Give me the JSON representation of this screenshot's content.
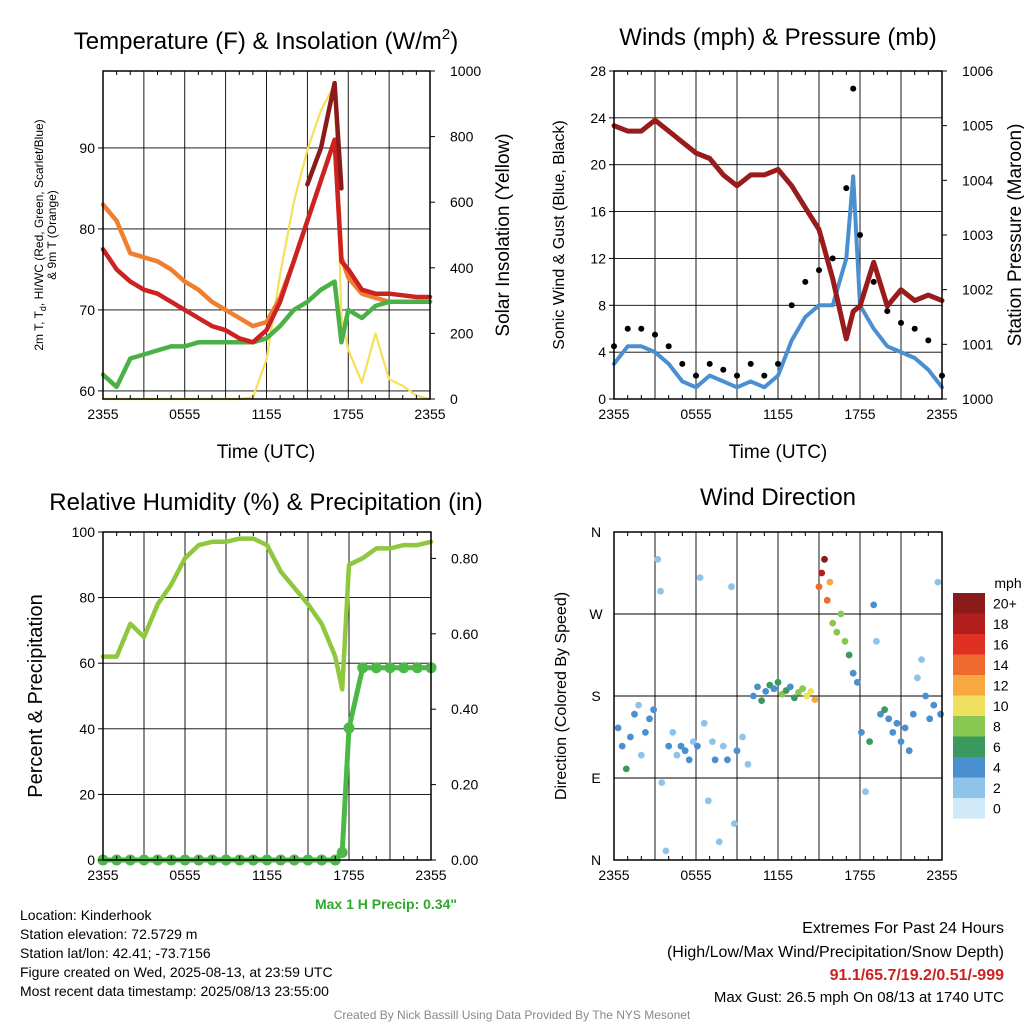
{
  "panels": {
    "temperature": {
      "title": "Temperature (F) & Insolation (W/m",
      "title_sup": "2",
      "title_close": ")",
      "ylabel_line1": "2m T, T",
      "ylabel_sub": "d",
      "ylabel_line1_rest": ", HI/WC (Red, Green, Scarlet/Blue)",
      "ylabel_line2": "& 9m T (Orange)",
      "y2label": "Solar Insolation (Yellow)",
      "xlabel": "Time (UTC)"
    },
    "winds": {
      "title": "Winds (mph) & Pressure (mb)",
      "ylabel": "Sonic Wind & Gust (Blue, Black)",
      "y2label": "Station Pressure (Maroon)",
      "xlabel": "Time (UTC)"
    },
    "humidity": {
      "title": "Relative Humidity (%) & Precipitation (in)",
      "ylabel": "Percent & Precipitation",
      "annotation": "Max 1 H Precip: 0.34\""
    },
    "direction": {
      "title": "Wind Direction",
      "ylabel": "Direction (Colored By Speed)",
      "legend_title": "mph"
    }
  },
  "station": {
    "location": "Location: Kinderhook",
    "elevation": "Station elevation: 72.5729 m",
    "latlon": "Station lat/lon: 42.41; -73.7156",
    "created": "Figure created on Wed, 2025-08-13, at 23:59 UTC",
    "recent": "Most recent data timestamp: 2025/08/13 23:55:00"
  },
  "extremes": {
    "title": "Extremes For Past 24 Hours",
    "subtitle": "(High/Low/Max Wind/Precipitation/Snow Depth)",
    "values": "91.1/65.7/19.2/0.51/-999",
    "gust": "Max Gust: 26.5 mph On 08/13 at 1740 UTC"
  },
  "credit": "Created By Nick Bassill Using Data Provided By The NYS Mesonet",
  "colors": {
    "temp_2m": "#cc2222",
    "temp_9m": "#ef7f2f",
    "heat_index": "#8b1a1a",
    "dewpoint": "#4cb048",
    "insolation": "#f5e05a",
    "wind": "#4a90d0",
    "gust": "#000000",
    "pressure": "#991b1b",
    "rh": "#8fc73e",
    "precip": "#4cb848",
    "extremes_values": "#cc2222",
    "annotation": "#2ea82e",
    "credit": "#888888"
  },
  "chart_data": [
    {
      "type": "line",
      "title": "Temperature (F) & Insolation (W/m2)",
      "xlabel": "Time (UTC)",
      "ylabel": "2m T, Td, HI/WC (Red, Green, Scarlet/Blue) & 9m T (Orange)",
      "y2label": "Solar Insolation (Yellow)",
      "x_ticks": [
        "2355",
        "0555",
        "1155",
        "1755",
        "2355"
      ],
      "ylim": [
        59,
        99.5
      ],
      "y_ticks": [
        60,
        70,
        80,
        90
      ],
      "y2lim": [
        0,
        1000
      ],
      "y2_ticks": [
        0,
        200,
        400,
        600,
        800,
        1000
      ],
      "x_hours": [
        0,
        1,
        2,
        3,
        4,
        5,
        6,
        7,
        8,
        9,
        10,
        11,
        12,
        13,
        14,
        15,
        16,
        17,
        17.5,
        18,
        19,
        20,
        21,
        22,
        23,
        24
      ],
      "series": [
        {
          "name": "2m T",
          "axis": "left",
          "values": [
            77.5,
            75,
            73.5,
            72.5,
            72,
            71,
            70,
            69,
            68,
            67.5,
            66.5,
            66,
            67.5,
            71,
            76,
            81,
            86,
            91,
            76,
            75,
            72.5,
            72,
            72,
            71.8,
            71.6,
            71.6
          ]
        },
        {
          "name": "9m T",
          "axis": "left",
          "values": [
            83,
            81,
            77,
            76.5,
            76,
            75,
            73.5,
            72.5,
            71,
            70,
            69,
            68,
            68.5,
            71.5,
            76,
            81,
            86,
            91,
            76.5,
            74,
            72,
            71.5,
            71,
            71,
            71,
            71
          ]
        },
        {
          "name": "HI",
          "axis": "left",
          "values": [
            null,
            null,
            null,
            null,
            null,
            null,
            null,
            null,
            null,
            null,
            null,
            null,
            null,
            null,
            null,
            85.5,
            90,
            98,
            85,
            null,
            null,
            null,
            null,
            null,
            null,
            null
          ]
        },
        {
          "name": "Td",
          "axis": "left",
          "values": [
            62,
            60.5,
            64,
            64.5,
            65,
            65.5,
            65.5,
            66,
            66,
            66,
            66,
            66,
            66.5,
            68,
            70,
            71,
            72.5,
            73.5,
            66,
            70,
            69,
            70.5,
            71,
            71,
            71,
            71
          ]
        },
        {
          "name": "Insolation",
          "axis": "right",
          "values": [
            0,
            0,
            0,
            0,
            0,
            0,
            0,
            0,
            0,
            0,
            0,
            5,
            120,
            380,
            600,
            760,
            880,
            960,
            250,
            150,
            50,
            200,
            60,
            40,
            10,
            0
          ]
        }
      ]
    },
    {
      "type": "line",
      "title": "Winds (mph) & Pressure (mb)",
      "xlabel": "Time (UTC)",
      "ylabel": "Sonic Wind & Gust (Blue, Black)",
      "y2label": "Station Pressure (Maroon)",
      "x_ticks": [
        "2355",
        "0555",
        "1155",
        "1755",
        "2355"
      ],
      "ylim": [
        0,
        28
      ],
      "y_ticks": [
        0,
        4,
        8,
        12,
        16,
        20,
        24,
        28
      ],
      "y2lim": [
        1000,
        1006
      ],
      "y2_ticks": [
        1000,
        1001,
        1002,
        1003,
        1004,
        1005,
        1006
      ],
      "x_hours": [
        0,
        1,
        2,
        3,
        4,
        5,
        6,
        7,
        8,
        9,
        10,
        11,
        12,
        13,
        14,
        15,
        16,
        17,
        17.5,
        18,
        19,
        20,
        21,
        22,
        23,
        24
      ],
      "series": [
        {
          "name": "Sonic Wind",
          "axis": "left",
          "values": [
            3,
            4.5,
            4.5,
            4,
            3,
            1.5,
            1,
            2,
            1.5,
            1,
            1.5,
            1,
            2,
            5,
            7,
            8,
            8,
            12,
            19,
            8,
            6,
            4.5,
            4,
            3.5,
            2.5,
            1
          ]
        },
        {
          "name": "Gust",
          "axis": "left",
          "values": [
            4.5,
            6,
            6,
            5.5,
            4.5,
            3,
            2,
            3,
            2.5,
            2,
            3,
            2,
            3,
            8,
            10,
            11,
            12,
            18,
            26.5,
            14,
            10,
            7.5,
            6.5,
            6,
            5,
            2
          ]
        },
        {
          "name": "Station Pressure",
          "axis": "right",
          "values": [
            1005.0,
            1004.9,
            1004.9,
            1005.1,
            1004.9,
            1004.7,
            1004.5,
            1004.4,
            1004.1,
            1003.9,
            1004.1,
            1004.1,
            1004.2,
            1003.9,
            1003.5,
            1003.1,
            1002.2,
            1001.1,
            1001.6,
            1001.7,
            1002.5,
            1001.7,
            1002.0,
            1001.8,
            1001.9,
            1001.8
          ]
        }
      ]
    },
    {
      "type": "line",
      "title": "Relative Humidity (%) & Precipitation (in)",
      "ylabel": "Percent & Precipitation",
      "x_ticks": [
        "2355",
        "0555",
        "1155",
        "1755",
        "2355"
      ],
      "ylim": [
        0,
        100
      ],
      "y_ticks": [
        0,
        20,
        40,
        60,
        80,
        100
      ],
      "y2lim": [
        0,
        0.87
      ],
      "y2_ticks": [
        0.0,
        0.2,
        0.4,
        0.6,
        0.8
      ],
      "annotation": "Max 1 H Precip: 0.34\"",
      "x_hours": [
        0,
        1,
        2,
        3,
        4,
        5,
        6,
        7,
        8,
        9,
        10,
        11,
        12,
        13,
        14,
        15,
        16,
        17,
        17.5,
        18,
        19,
        20,
        21,
        22,
        23,
        24
      ],
      "series": [
        {
          "name": "RH",
          "axis": "left",
          "values": [
            62,
            62,
            72,
            68,
            78,
            84,
            92,
            96,
            97,
            97,
            98,
            98,
            96,
            88,
            83,
            78,
            72,
            62,
            52,
            90,
            92,
            95,
            95,
            96,
            96,
            97
          ]
        },
        {
          "name": "Precipitation",
          "axis": "right",
          "values": [
            0,
            0,
            0,
            0,
            0,
            0,
            0,
            0,
            0,
            0,
            0,
            0,
            0,
            0,
            0,
            0,
            0,
            0,
            0.02,
            0.35,
            0.51,
            0.51,
            0.51,
            0.51,
            0.51,
            0.51
          ]
        }
      ]
    },
    {
      "type": "scatter",
      "title": "Wind Direction",
      "ylabel": "Direction (Colored By Speed)",
      "x_ticks": [
        "2355",
        "0555",
        "1155",
        "1755",
        "2355"
      ],
      "y_ticks": [
        "N",
        "E",
        "S",
        "W",
        "N"
      ],
      "ylim": [
        0,
        360
      ],
      "legend_title": "mph",
      "legend_labels": [
        "0",
        "2",
        "4",
        "6",
        "8",
        "10",
        "12",
        "14",
        "16",
        "18",
        "20+"
      ],
      "legend_colors": [
        "#cfe9f9",
        "#8fc4ea",
        "#4a90d0",
        "#3a9a5e",
        "#88c850",
        "#f0e060",
        "#f7a841",
        "#ef6a2e",
        "#e02f23",
        "#b21e1e",
        "#8b1a1a"
      ],
      "points": [
        {
          "x": 0.3,
          "dir": 145,
          "speed": 4
        },
        {
          "x": 0.6,
          "dir": 125,
          "speed": 4
        },
        {
          "x": 0.9,
          "dir": 100,
          "speed": 6
        },
        {
          "x": 1.2,
          "dir": 135,
          "speed": 4
        },
        {
          "x": 1.5,
          "dir": 160,
          "speed": 4
        },
        {
          "x": 1.8,
          "dir": 170,
          "speed": 2
        },
        {
          "x": 2.0,
          "dir": 115,
          "speed": 2
        },
        {
          "x": 2.3,
          "dir": 140,
          "speed": 4
        },
        {
          "x": 2.6,
          "dir": 155,
          "speed": 4
        },
        {
          "x": 2.9,
          "dir": 165,
          "speed": 4
        },
        {
          "x": 3.2,
          "dir": 330,
          "speed": 2
        },
        {
          "x": 3.4,
          "dir": 295,
          "speed": 2
        },
        {
          "x": 3.5,
          "dir": 85,
          "speed": 2
        },
        {
          "x": 3.8,
          "dir": 10,
          "speed": 2
        },
        {
          "x": 4.0,
          "dir": 125,
          "speed": 4
        },
        {
          "x": 4.3,
          "dir": 140,
          "speed": 2
        },
        {
          "x": 4.6,
          "dir": 115,
          "speed": 2
        },
        {
          "x": 4.9,
          "dir": 125,
          "speed": 4
        },
        {
          "x": 5.2,
          "dir": 120,
          "speed": 4
        },
        {
          "x": 5.5,
          "dir": 110,
          "speed": 4
        },
        {
          "x": 5.8,
          "dir": 130,
          "speed": 2
        },
        {
          "x": 6.1,
          "dir": 125,
          "speed": 4
        },
        {
          "x": 6.3,
          "dir": 310,
          "speed": 2
        },
        {
          "x": 6.6,
          "dir": 150,
          "speed": 2
        },
        {
          "x": 6.9,
          "dir": 65,
          "speed": 2
        },
        {
          "x": 7.2,
          "dir": 130,
          "speed": 2
        },
        {
          "x": 7.4,
          "dir": 110,
          "speed": 4
        },
        {
          "x": 7.7,
          "dir": 20,
          "speed": 2
        },
        {
          "x": 8.0,
          "dir": 125,
          "speed": 2
        },
        {
          "x": 8.3,
          "dir": 110,
          "speed": 4
        },
        {
          "x": 8.6,
          "dir": 300,
          "speed": 2
        },
        {
          "x": 8.8,
          "dir": 40,
          "speed": 2
        },
        {
          "x": 9.0,
          "dir": 120,
          "speed": 4
        },
        {
          "x": 9.4,
          "dir": 135,
          "speed": 2
        },
        {
          "x": 9.8,
          "dir": 105,
          "speed": 2
        },
        {
          "x": 10.2,
          "dir": 180,
          "speed": 4
        },
        {
          "x": 10.5,
          "dir": 190,
          "speed": 4
        },
        {
          "x": 10.8,
          "dir": 175,
          "speed": 6
        },
        {
          "x": 11.1,
          "dir": 185,
          "speed": 4
        },
        {
          "x": 11.4,
          "dir": 192,
          "speed": 6
        },
        {
          "x": 11.7,
          "dir": 188,
          "speed": 4
        },
        {
          "x": 12.0,
          "dir": 195,
          "speed": 6
        },
        {
          "x": 12.3,
          "dir": 182,
          "speed": 8
        },
        {
          "x": 12.6,
          "dir": 186,
          "speed": 6
        },
        {
          "x": 12.9,
          "dir": 190,
          "speed": 4
        },
        {
          "x": 13.2,
          "dir": 178,
          "speed": 6
        },
        {
          "x": 13.5,
          "dir": 184,
          "speed": 8
        },
        {
          "x": 13.8,
          "dir": 188,
          "speed": 8
        },
        {
          "x": 14.1,
          "dir": 180,
          "speed": 10
        },
        {
          "x": 14.4,
          "dir": 185,
          "speed": 10
        },
        {
          "x": 14.7,
          "dir": 176,
          "speed": 12
        },
        {
          "x": 15.0,
          "dir": 300,
          "speed": 14
        },
        {
          "x": 15.2,
          "dir": 315,
          "speed": 18
        },
        {
          "x": 15.4,
          "dir": 330,
          "speed": 20
        },
        {
          "x": 15.6,
          "dir": 285,
          "speed": 14
        },
        {
          "x": 15.8,
          "dir": 305,
          "speed": 12
        },
        {
          "x": 16.0,
          "dir": 260,
          "speed": 8
        },
        {
          "x": 16.3,
          "dir": 250,
          "speed": 8
        },
        {
          "x": 16.6,
          "dir": 270,
          "speed": 8
        },
        {
          "x": 16.9,
          "dir": 240,
          "speed": 8
        },
        {
          "x": 17.2,
          "dir": 225,
          "speed": 6
        },
        {
          "x": 17.5,
          "dir": 205,
          "speed": 4
        },
        {
          "x": 17.8,
          "dir": 195,
          "speed": 4
        },
        {
          "x": 18.1,
          "dir": 140,
          "speed": 4
        },
        {
          "x": 18.4,
          "dir": 75,
          "speed": 2
        },
        {
          "x": 18.7,
          "dir": 130,
          "speed": 6
        },
        {
          "x": 19.0,
          "dir": 280,
          "speed": 4
        },
        {
          "x": 19.2,
          "dir": 240,
          "speed": 2
        },
        {
          "x": 19.5,
          "dir": 160,
          "speed": 4
        },
        {
          "x": 19.8,
          "dir": 165,
          "speed": 6
        },
        {
          "x": 20.1,
          "dir": 155,
          "speed": 4
        },
        {
          "x": 20.4,
          "dir": 140,
          "speed": 4
        },
        {
          "x": 20.7,
          "dir": 150,
          "speed": 4
        },
        {
          "x": 21.0,
          "dir": 130,
          "speed": 4
        },
        {
          "x": 21.3,
          "dir": 145,
          "speed": 4
        },
        {
          "x": 21.6,
          "dir": 120,
          "speed": 4
        },
        {
          "x": 21.9,
          "dir": 160,
          "speed": 4
        },
        {
          "x": 22.2,
          "dir": 200,
          "speed": 2
        },
        {
          "x": 22.5,
          "dir": 220,
          "speed": 2
        },
        {
          "x": 22.8,
          "dir": 180,
          "speed": 4
        },
        {
          "x": 23.1,
          "dir": 155,
          "speed": 4
        },
        {
          "x": 23.4,
          "dir": 170,
          "speed": 4
        },
        {
          "x": 23.7,
          "dir": 305,
          "speed": 2
        },
        {
          "x": 23.9,
          "dir": 160,
          "speed": 4
        }
      ]
    }
  ]
}
